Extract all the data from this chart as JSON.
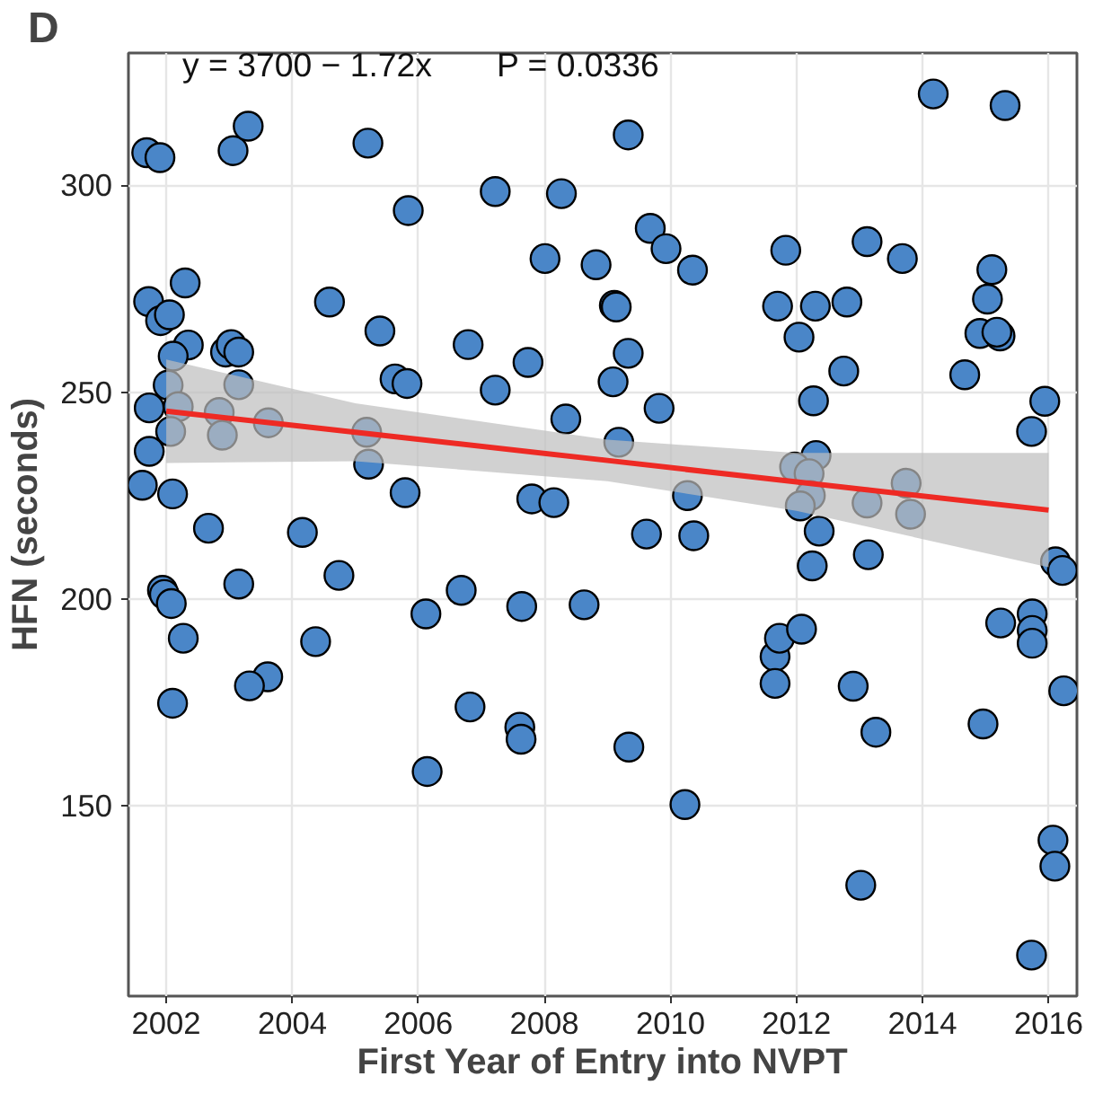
{
  "chart_data": {
    "type": "scatter",
    "xlabel": "First Year of Entry into NVPT",
    "ylabel": "HFN (seconds)",
    "annotations": [
      "D",
      "y = 3700 − 1.72x",
      "P = 0.0336"
    ],
    "xlim": [
      2001.4,
      2016.45
    ],
    "ylim": [
      104,
      332
    ],
    "xticks": [
      2002,
      2004,
      2006,
      2008,
      2010,
      2012,
      2014,
      2016
    ],
    "yticks": [
      150,
      200,
      250,
      300
    ],
    "grid": true,
    "series": [
      {
        "color": "#4a86c8",
        "marker": "circle",
        "x": [
          2001.69,
          2001.9,
          2003.06,
          2003.3,
          2005.2,
          2005.84,
          2001.72,
          2002.3,
          2001.91,
          2002.05,
          2004.59,
          2005.39,
          2002.35,
          2002.94,
          2003.03,
          2003.15,
          2002.11,
          2005.63,
          2005.82,
          2006.79,
          2002.03,
          2003.15,
          2001.73,
          2002.19,
          2002.84,
          2003.62,
          2002.07,
          2002.89,
          2005.18,
          2001.73,
          2005.21,
          2001.62,
          2002.1,
          2005.79,
          2002.67,
          2004.16,
          2004.74,
          2003.15,
          2001.94,
          2001.97,
          2002.08,
          2002.27,
          2004.37,
          2003.61,
          2003.32,
          2002.1,
          2006.12,
          2006.68,
          2006.14,
          2006.82,
          2009.33,
          2007.22,
          2008.27,
          2009.68,
          2009.93,
          2010.35,
          2008.01,
          2008.82,
          2009.11,
          2009.14,
          2007.74,
          2009.33,
          2007.22,
          2009.09,
          2009.82,
          2008.34,
          2009.18,
          2007.8,
          2008.15,
          2010.27,
          2009.62,
          2010.37,
          2007.64,
          2008.63,
          2007.61,
          2007.63,
          2009.34,
          2010.23,
          2011.66,
          2011.66,
          2011.73,
          2014.17,
          2015.31,
          2011.83,
          2013.12,
          2013.68,
          2015.1,
          2011.7,
          2012.3,
          2012.8,
          2015.03,
          2012.04,
          2014.91,
          2015.23,
          2015.18,
          2012.75,
          2014.67,
          2012.27,
          2015.94,
          2015.73,
          2012.31,
          2011.97,
          2012.2,
          2013.74,
          2012.22,
          2012.06,
          2013.12,
          2013.81,
          2012.36,
          2012.25,
          2013.14,
          2016.11,
          2016.22,
          2012.08,
          2012.9,
          2013.26,
          2015.24,
          2015.74,
          2015.74,
          2015.74,
          2014.96,
          2016.24,
          2016.07,
          2016.1,
          2013.02,
          2015.73
        ],
        "values": [
          307.9,
          306.7,
          308.4,
          314.3,
          310.2,
          293.9,
          271.9,
          276.4,
          267.3,
          268.7,
          271.8,
          264.8,
          261.4,
          259.7,
          261.5,
          259.7,
          258.7,
          253.2,
          252.1,
          261.5,
          251.7,
          251.8,
          246.2,
          246.5,
          245.1,
          242.6,
          240.5,
          239.6,
          240.3,
          235.7,
          232.6,
          227.5,
          225.4,
          225.7,
          217.1,
          216.1,
          205.7,
          203.6,
          202.1,
          201.1,
          198.9,
          190.5,
          189.7,
          181.2,
          179.0,
          174.8,
          196.4,
          202.1,
          158.3,
          173.9,
          312.2,
          298.5,
          298.0,
          289.6,
          284.7,
          279.5,
          282.3,
          280.8,
          271.0,
          270.6,
          257.2,
          259.4,
          250.5,
          252.5,
          246.1,
          243.5,
          237.9,
          224.2,
          223.3,
          225.0,
          215.7,
          215.3,
          198.2,
          198.6,
          169.0,
          166.1,
          164.2,
          150.3,
          186.1,
          179.6,
          190.5,
          322.1,
          319.3,
          284.3,
          286.4,
          282.3,
          279.6,
          270.8,
          270.8,
          271.8,
          272.5,
          263.3,
          264.2,
          263.6,
          264.5,
          255.1,
          254.2,
          247.9,
          247.8,
          240.5,
          234.7,
          231.9,
          230.3,
          228.0,
          225.0,
          222.5,
          223.2,
          220.5,
          216.4,
          208.0,
          210.7,
          209.0,
          206.9,
          192.7,
          178.9,
          167.8,
          194.2,
          196.4,
          192.4,
          189.3,
          169.8,
          177.8,
          141.7,
          135.4,
          130.8,
          113.9
        ]
      },
      {
        "type": "line",
        "color": "#ee2a24",
        "line_style": "solid",
        "x": [
          2002,
          2005,
          2009,
          2012,
          2016
        ],
        "values": [
          245.4,
          240.3,
          233.5,
          228.3,
          221.5
        ],
        "lower": [
          232.9,
          233.3,
          228.5,
          221.3,
          207.7
        ],
        "upper": [
          257.9,
          247.3,
          238.5,
          235.3,
          235.3
        ]
      }
    ]
  }
}
